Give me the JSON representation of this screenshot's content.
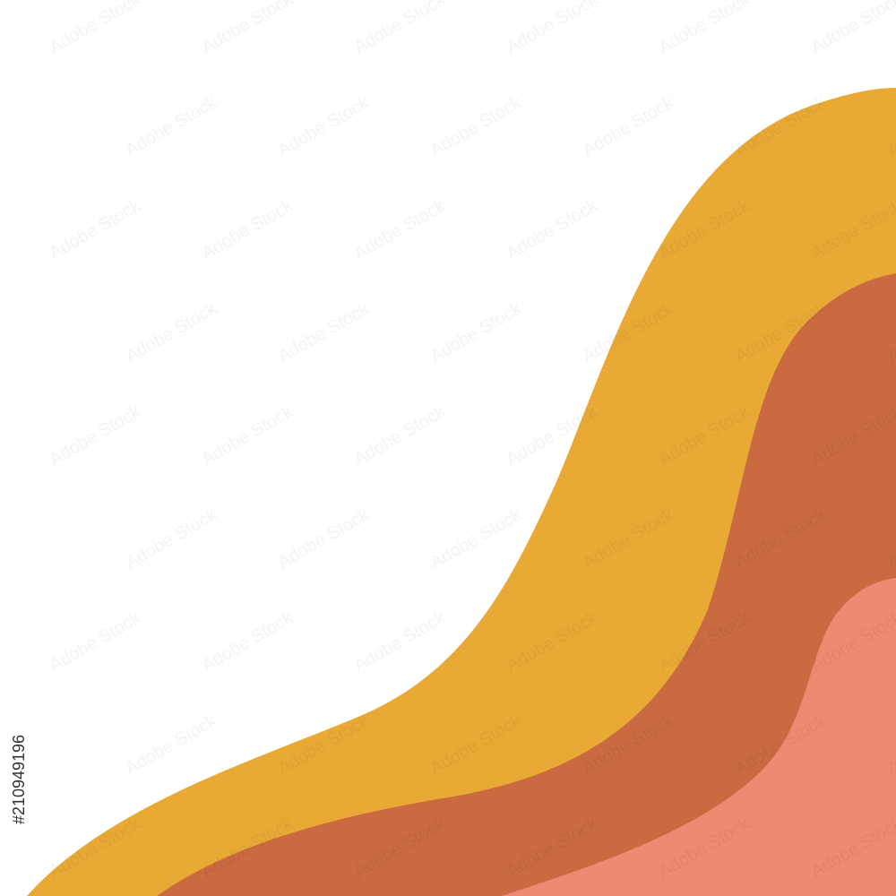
{
  "image_id": "#210949196",
  "watermark": "Adobe Stock"
}
